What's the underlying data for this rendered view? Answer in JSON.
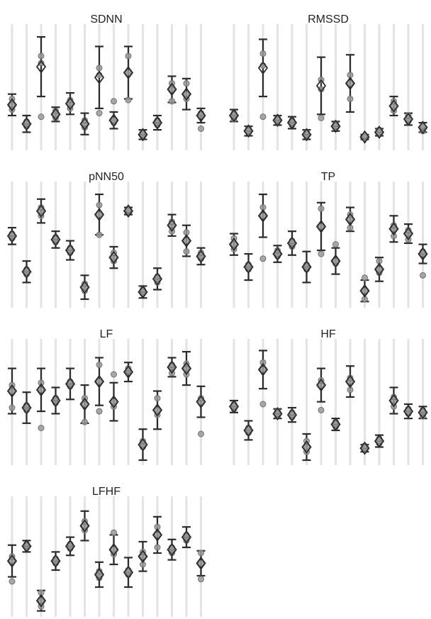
{
  "chart_data": [
    {
      "type": "errorbar",
      "title": "SDNN",
      "categories": [
        null,
        null,
        null,
        null,
        null,
        null,
        null,
        null,
        null,
        null,
        null,
        null,
        null,
        null
      ],
      "ylim": [
        0,
        100
      ],
      "means": [
        37,
        21,
        69,
        29,
        38,
        21,
        60,
        24,
        64,
        12,
        22,
        50,
        46,
        28
      ],
      "errors": [
        9,
        7,
        25,
        6,
        9,
        9,
        26,
        7,
        22,
        4,
        6,
        11,
        13,
        6
      ],
      "points": [
        [
          33,
          37,
          42
        ],
        [
          19,
          21,
          23
        ],
        [
          27,
          72,
          78
        ],
        [
          26,
          29,
          32
        ],
        [
          34,
          38,
          41
        ],
        [
          18,
          21,
          24
        ],
        [
          30,
          62,
          68
        ],
        [
          22,
          24,
          40
        ],
        [
          41,
          64,
          78
        ],
        [
          11,
          12,
          14
        ],
        [
          20,
          22,
          24
        ],
        [
          40,
          50,
          55
        ],
        [
          42,
          46,
          55
        ],
        [
          17,
          28,
          30
        ]
      ]
    },
    {
      "type": "errorbar",
      "title": "RMSSD",
      "categories": [
        null,
        null,
        null,
        null,
        null,
        null,
        null,
        null,
        null,
        null,
        null,
        null,
        null,
        null
      ],
      "ylim": [
        0,
        100
      ],
      "means": [
        28,
        15,
        68,
        24,
        22,
        12,
        53,
        19,
        55,
        10,
        14,
        36,
        25,
        18
      ],
      "errors": [
        5,
        4,
        24,
        4,
        5,
        4,
        24,
        4,
        24,
        2,
        3,
        8,
        5,
        4
      ],
      "points": [
        [
          25,
          28,
          30
        ],
        [
          14,
          15,
          17
        ],
        [
          27,
          70,
          80
        ],
        [
          23,
          24,
          26
        ],
        [
          20,
          22,
          24
        ],
        [
          11,
          12,
          14
        ],
        [
          26,
          50,
          58
        ],
        [
          18,
          19,
          21
        ],
        [
          42,
          55,
          62
        ],
        [
          9,
          10,
          11
        ],
        [
          13,
          14,
          16
        ],
        [
          32,
          36,
          40
        ],
        [
          23,
          25,
          28
        ],
        [
          15,
          18,
          19
        ]
      ]
    },
    {
      "type": "errorbar",
      "title": "pNN50",
      "categories": [
        null,
        null,
        null,
        null,
        null,
        null,
        null,
        null,
        null,
        null,
        null,
        null,
        null,
        null
      ],
      "ylim": [
        0,
        100
      ],
      "means": [
        59,
        29,
        80,
        56,
        47,
        16,
        77,
        41,
        80,
        12,
        23,
        68,
        55,
        42
      ],
      "errors": [
        7,
        9,
        10,
        7,
        8,
        10,
        17,
        9,
        3,
        5,
        9,
        9,
        13,
        7
      ],
      "points": [
        [
          57,
          59,
          61
        ],
        [
          27,
          29,
          31
        ],
        [
          76,
          80,
          83
        ],
        [
          54,
          56,
          58
        ],
        [
          45,
          47,
          49
        ],
        [
          13,
          16,
          19
        ],
        [
          60,
          77,
          85
        ],
        [
          38,
          41,
          45
        ],
        [
          79,
          80,
          81
        ],
        [
          11,
          12,
          14
        ],
        [
          20,
          23,
          25
        ],
        [
          63,
          68,
          71
        ],
        [
          46,
          55,
          62
        ],
        [
          40,
          42,
          45
        ]
      ]
    },
    {
      "type": "errorbar",
      "title": "TP",
      "categories": [
        null,
        null,
        null,
        null,
        null,
        null,
        null,
        null,
        null,
        null,
        null,
        null,
        null,
        null
      ],
      "ylim": [
        0,
        100
      ],
      "means": [
        52,
        33,
        76,
        44,
        53,
        33,
        67,
        38,
        73,
        13,
        31,
        65,
        61,
        44
      ],
      "errors": [
        9,
        11,
        18,
        7,
        10,
        13,
        20,
        11,
        10,
        9,
        10,
        11,
        8,
        8
      ],
      "points": [
        [
          48,
          52,
          57
        ],
        [
          31,
          33,
          35
        ],
        [
          40,
          76,
          83
        ],
        [
          42,
          44,
          47
        ],
        [
          50,
          53,
          55
        ],
        [
          31,
          33,
          35
        ],
        [
          44,
          67,
          82
        ],
        [
          36,
          38,
          52
        ],
        [
          66,
          73,
          77
        ],
        [
          6,
          13,
          24
        ],
        [
          28,
          31,
          38
        ],
        [
          59,
          65,
          68
        ],
        [
          56,
          61,
          64
        ],
        [
          26,
          44,
          46
        ]
      ]
    },
    {
      "type": "errorbar",
      "title": "LF",
      "categories": [
        null,
        null,
        null,
        null,
        null,
        null,
        null,
        null,
        null,
        null,
        null,
        null,
        null,
        null
      ],
      "ylim": [
        0,
        100
      ],
      "means": [
        61,
        47,
        62,
        53,
        67,
        50,
        69,
        52,
        77,
        16,
        45,
        81,
        80,
        52
      ],
      "errors": [
        19,
        13,
        18,
        11,
        13,
        16,
        20,
        16,
        8,
        13,
        16,
        8,
        14,
        13
      ],
      "points": [
        [
          47,
          61,
          66
        ],
        [
          45,
          47,
          49
        ],
        [
          30,
          62,
          68
        ],
        [
          51,
          53,
          55
        ],
        [
          65,
          67,
          69
        ],
        [
          35,
          50,
          55
        ],
        [
          44,
          69,
          83
        ],
        [
          48,
          52,
          75
        ],
        [
          77,
          78,
          80
        ],
        [
          14,
          16,
          19
        ],
        [
          41,
          45,
          55
        ],
        [
          76,
          81,
          83
        ],
        [
          75,
          80,
          84
        ],
        [
          25,
          52,
          55
        ]
      ]
    },
    {
      "type": "errorbar",
      "title": "HF",
      "categories": [
        null,
        null,
        null,
        null,
        null,
        null,
        null,
        null,
        null,
        null,
        null,
        null,
        null,
        null
      ],
      "ylim": [
        0,
        100
      ],
      "means": [
        48,
        28,
        79,
        42,
        41,
        14,
        66,
        33,
        69,
        13,
        19,
        53,
        44,
        43
      ],
      "errors": [
        5,
        8,
        16,
        4,
        6,
        11,
        14,
        5,
        13,
        3,
        5,
        11,
        6,
        5
      ],
      "points": [
        [
          46,
          48,
          50
        ],
        [
          26,
          28,
          30
        ],
        [
          50,
          79,
          85
        ],
        [
          40,
          42,
          44
        ],
        [
          39,
          41,
          43
        ],
        [
          10,
          14,
          19
        ],
        [
          45,
          66,
          70
        ],
        [
          31,
          33,
          35
        ],
        [
          62,
          69,
          72
        ],
        [
          12,
          13,
          15
        ],
        [
          17,
          19,
          21
        ],
        [
          48,
          53,
          56
        ],
        [
          42,
          44,
          46
        ],
        [
          40,
          43,
          45
        ]
      ]
    },
    {
      "type": "errorbar",
      "title": "LFHF",
      "categories": [
        null,
        null,
        null,
        null,
        null,
        null,
        null,
        null,
        null,
        null,
        null,
        null,
        null,
        null
      ],
      "ylim": [
        0,
        100
      ],
      "means": [
        48,
        61,
        13,
        48,
        61,
        79,
        36,
        58,
        38,
        52,
        71,
        58,
        69,
        46
      ],
      "errors": [
        14,
        5,
        9,
        8,
        8,
        13,
        11,
        13,
        13,
        13,
        16,
        9,
        9,
        11
      ],
      "points": [
        [
          30,
          48,
          52
        ],
        [
          60,
          61,
          63
        ],
        [
          8,
          13,
          20
        ],
        [
          46,
          48,
          50
        ],
        [
          59,
          61,
          63
        ],
        [
          75,
          79,
          83
        ],
        [
          33,
          36,
          39
        ],
        [
          54,
          58,
          73
        ],
        [
          36,
          38,
          40
        ],
        [
          45,
          52,
          56
        ],
        [
          60,
          71,
          78
        ],
        [
          55,
          58,
          60
        ],
        [
          66,
          69,
          71
        ],
        [
          32,
          46,
          55
        ]
      ]
    }
  ]
}
